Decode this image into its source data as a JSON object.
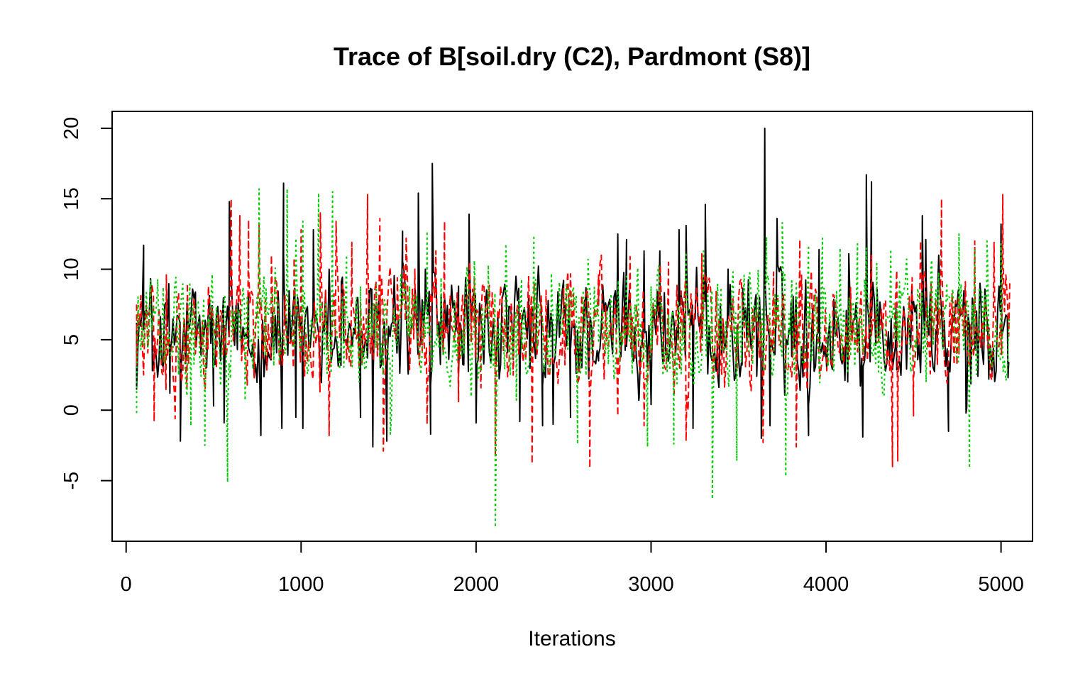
{
  "chart_data": {
    "type": "line",
    "title": "Trace of B[soil.dry (C2), Pardmont (S8)]",
    "xlabel": "Iterations",
    "ylabel": "",
    "xlim": [
      -80,
      5180
    ],
    "ylim": [
      -9.3,
      21.2
    ],
    "x_ticks": [
      0,
      1000,
      2000,
      3000,
      4000,
      5000
    ],
    "x_tick_labels": [
      "0",
      "1000",
      "2000",
      "3000",
      "4000",
      "5000"
    ],
    "y_ticks": [
      -5,
      0,
      5,
      10,
      15,
      20
    ],
    "y_tick_labels": [
      "-5",
      "0",
      "5",
      "10",
      "15",
      "20"
    ],
    "grid": false,
    "legend": "none",
    "x_start": 60,
    "x_end": 5050,
    "series": [
      {
        "color": "#000000",
        "dash": "solid",
        "peaks": [
          [
            60,
            6.2
          ],
          [
            100,
            11.7
          ],
          [
            150,
            2.8
          ],
          [
            200,
            5.0
          ],
          [
            250,
            1.2
          ],
          [
            310,
            -2.2
          ],
          [
            330,
            6.0
          ],
          [
            400,
            4.5
          ],
          [
            460,
            5.6
          ],
          [
            500,
            0.3
          ],
          [
            560,
            -0.9
          ],
          [
            590,
            14.8
          ],
          [
            640,
            7.6
          ],
          [
            700,
            8.3
          ],
          [
            770,
            -1.8
          ],
          [
            890,
            -1.3
          ],
          [
            900,
            16.1
          ],
          [
            970,
            -0.5
          ],
          [
            1010,
            -1.3
          ],
          [
            1070,
            12.8
          ],
          [
            1160,
            10.0
          ],
          [
            1230,
            9.1
          ],
          [
            1340,
            -0.5
          ],
          [
            1390,
            6.9
          ],
          [
            1410,
            -2.6
          ],
          [
            1450,
            5.9
          ],
          [
            1490,
            -2.2
          ],
          [
            1530,
            8.4
          ],
          [
            1580,
            12.7
          ],
          [
            1670,
            15.4
          ],
          [
            1710,
            10.0
          ],
          [
            1740,
            -1.7
          ],
          [
            1750,
            17.5
          ],
          [
            1800,
            8.2
          ],
          [
            1900,
            8.8
          ],
          [
            1930,
            3.2
          ],
          [
            1960,
            13.9
          ],
          [
            2000,
            -0.9
          ],
          [
            2100,
            6.5
          ],
          [
            2250,
            -0.8
          ],
          [
            2330,
            4.5
          ],
          [
            2380,
            -1.1
          ],
          [
            2440,
            -1.0
          ],
          [
            2500,
            9.2
          ],
          [
            2540,
            -0.5
          ],
          [
            2620,
            7.8
          ],
          [
            2700,
            3.5
          ],
          [
            2810,
            12.5
          ],
          [
            2860,
            12.1
          ],
          [
            2930,
            0.7
          ],
          [
            2960,
            11.3
          ],
          [
            3000,
            0.4
          ],
          [
            3050,
            11.3
          ],
          [
            3160,
            12.8
          ],
          [
            3200,
            13.1
          ],
          [
            3240,
            -1.3
          ],
          [
            3310,
            14.6
          ],
          [
            3380,
            4.9
          ],
          [
            3440,
            10.0
          ],
          [
            3520,
            3.2
          ],
          [
            3600,
            8.2
          ],
          [
            3630,
            -2.0
          ],
          [
            3650,
            20.0
          ],
          [
            3680,
            -1.1
          ],
          [
            3720,
            13.6
          ],
          [
            3800,
            7.6
          ],
          [
            3900,
            -1.8
          ],
          [
            3960,
            11.4
          ],
          [
            4040,
            4.8
          ],
          [
            4130,
            11.1
          ],
          [
            4210,
            -1.9
          ],
          [
            4230,
            16.7
          ],
          [
            4260,
            16.2
          ],
          [
            4300,
            5.2
          ],
          [
            4400,
            7.2
          ],
          [
            4490,
            8.8
          ],
          [
            4550,
            13.8
          ],
          [
            4570,
            12.1
          ],
          [
            4640,
            9.3
          ],
          [
            4700,
            -1.5
          ],
          [
            4800,
            -0.2
          ],
          [
            4880,
            9.0
          ],
          [
            4930,
            2.2
          ],
          [
            5000,
            13.2
          ],
          [
            5040,
            2.3
          ]
        ]
      },
      {
        "color": "#ff0000",
        "dash": "dashed",
        "peaks": [
          [
            60,
            7.5
          ],
          [
            100,
            2.5
          ],
          [
            160,
            -0.8
          ],
          [
            230,
            9.6
          ],
          [
            280,
            -0.6
          ],
          [
            350,
            9.0
          ],
          [
            420,
            5.5
          ],
          [
            470,
            8.8
          ],
          [
            600,
            15.0
          ],
          [
            650,
            13.8
          ],
          [
            700,
            13.5
          ],
          [
            730,
            4.0
          ],
          [
            760,
            13.2
          ],
          [
            830,
            11.0
          ],
          [
            880,
            4.5
          ],
          [
            960,
            10.8
          ],
          [
            1000,
            12.8
          ],
          [
            1110,
            14.0
          ],
          [
            1160,
            -1.8
          ],
          [
            1200,
            13.4
          ],
          [
            1290,
            11.9
          ],
          [
            1380,
            15.3
          ],
          [
            1450,
            13.6
          ],
          [
            1470,
            -2.9
          ],
          [
            1550,
            9.4
          ],
          [
            1600,
            12.2
          ],
          [
            1650,
            10.0
          ],
          [
            1720,
            -1.0
          ],
          [
            1770,
            11.3
          ],
          [
            1820,
            13.4
          ],
          [
            1900,
            0.6
          ],
          [
            1990,
            9.4
          ],
          [
            2030,
            7.0
          ],
          [
            2110,
            -3.3
          ],
          [
            2200,
            7.6
          ],
          [
            2320,
            -3.8
          ],
          [
            2400,
            8.5
          ],
          [
            2500,
            8.7
          ],
          [
            2650,
            -4.1
          ],
          [
            2700,
            9.6
          ],
          [
            2810,
            -0.4
          ],
          [
            2880,
            10.9
          ],
          [
            2960,
            -1.1
          ],
          [
            3050,
            8.0
          ],
          [
            3100,
            10.5
          ],
          [
            3200,
            -2.2
          ],
          [
            3290,
            11.1
          ],
          [
            3410,
            6.5
          ],
          [
            3500,
            8.0
          ],
          [
            3640,
            -2.3
          ],
          [
            3700,
            9.8
          ],
          [
            3830,
            -2.6
          ],
          [
            3850,
            12.1
          ],
          [
            3950,
            5.8
          ],
          [
            4040,
            8.2
          ],
          [
            4140,
            6.8
          ],
          [
            4200,
            8.4
          ],
          [
            4260,
            11.0
          ],
          [
            4350,
            4.3
          ],
          [
            4380,
            -4.0
          ],
          [
            4410,
            -3.6
          ],
          [
            4500,
            -0.4
          ],
          [
            4540,
            12.0
          ],
          [
            4600,
            9.1
          ],
          [
            4660,
            15.0
          ],
          [
            4720,
            8.3
          ],
          [
            4760,
            4.0
          ],
          [
            4850,
            12.0
          ],
          [
            4900,
            4.6
          ],
          [
            4960,
            11.9
          ],
          [
            5010,
            15.3
          ],
          [
            5050,
            9.0
          ]
        ]
      },
      {
        "color": "#00cd00",
        "dash": "dotted",
        "peaks": [
          [
            60,
            -0.2
          ],
          [
            140,
            9.2
          ],
          [
            180,
            8.8
          ],
          [
            220,
            3.3
          ],
          [
            300,
            2.5
          ],
          [
            370,
            -1.1
          ],
          [
            450,
            -2.5
          ],
          [
            500,
            3.8
          ],
          [
            580,
            -5.1
          ],
          [
            630,
            5.6
          ],
          [
            680,
            0.7
          ],
          [
            760,
            15.7
          ],
          [
            800,
            8.6
          ],
          [
            850,
            9.2
          ],
          [
            920,
            15.7
          ],
          [
            970,
            12.2
          ],
          [
            1010,
            13.4
          ],
          [
            1100,
            15.4
          ],
          [
            1180,
            15.5
          ],
          [
            1260,
            11.0
          ],
          [
            1340,
            8.8
          ],
          [
            1430,
            8.9
          ],
          [
            1510,
            -1.7
          ],
          [
            1570,
            9.6
          ],
          [
            1620,
            8.8
          ],
          [
            1720,
            12.7
          ],
          [
            1800,
            9.4
          ],
          [
            1880,
            4.0
          ],
          [
            1990,
            10.6
          ],
          [
            2070,
            10.3
          ],
          [
            2110,
            -8.3
          ],
          [
            2170,
            11.8
          ],
          [
            2230,
            0.7
          ],
          [
            2260,
            9.3
          ],
          [
            2330,
            12.4
          ],
          [
            2430,
            9.7
          ],
          [
            2530,
            8.6
          ],
          [
            2580,
            -2.4
          ],
          [
            2640,
            10.7
          ],
          [
            2700,
            6.6
          ],
          [
            2780,
            6.3
          ],
          [
            2860,
            9.5
          ],
          [
            2920,
            9.2
          ],
          [
            2980,
            -2.6
          ],
          [
            3000,
            8.8
          ],
          [
            3130,
            -2.4
          ],
          [
            3200,
            11.2
          ],
          [
            3300,
            11.3
          ],
          [
            3350,
            -6.3
          ],
          [
            3400,
            8.7
          ],
          [
            3490,
            -3.6
          ],
          [
            3560,
            9.6
          ],
          [
            3660,
            12.3
          ],
          [
            3750,
            13.3
          ],
          [
            3770,
            -4.7
          ],
          [
            3830,
            9.0
          ],
          [
            3900,
            11.7
          ],
          [
            3980,
            12.2
          ],
          [
            4080,
            11.5
          ],
          [
            4180,
            11.8
          ],
          [
            4230,
            11.5
          ],
          [
            4290,
            10.4
          ],
          [
            4370,
            11.4
          ],
          [
            4420,
            9.1
          ],
          [
            4470,
            7.6
          ],
          [
            4600,
            10.3
          ],
          [
            4690,
            9.0
          ],
          [
            4760,
            12.5
          ],
          [
            4820,
            -4.1
          ],
          [
            4850,
            11.5
          ],
          [
            4920,
            12.0
          ],
          [
            5000,
            11.8
          ],
          [
            5050,
            6.6
          ]
        ]
      }
    ]
  }
}
